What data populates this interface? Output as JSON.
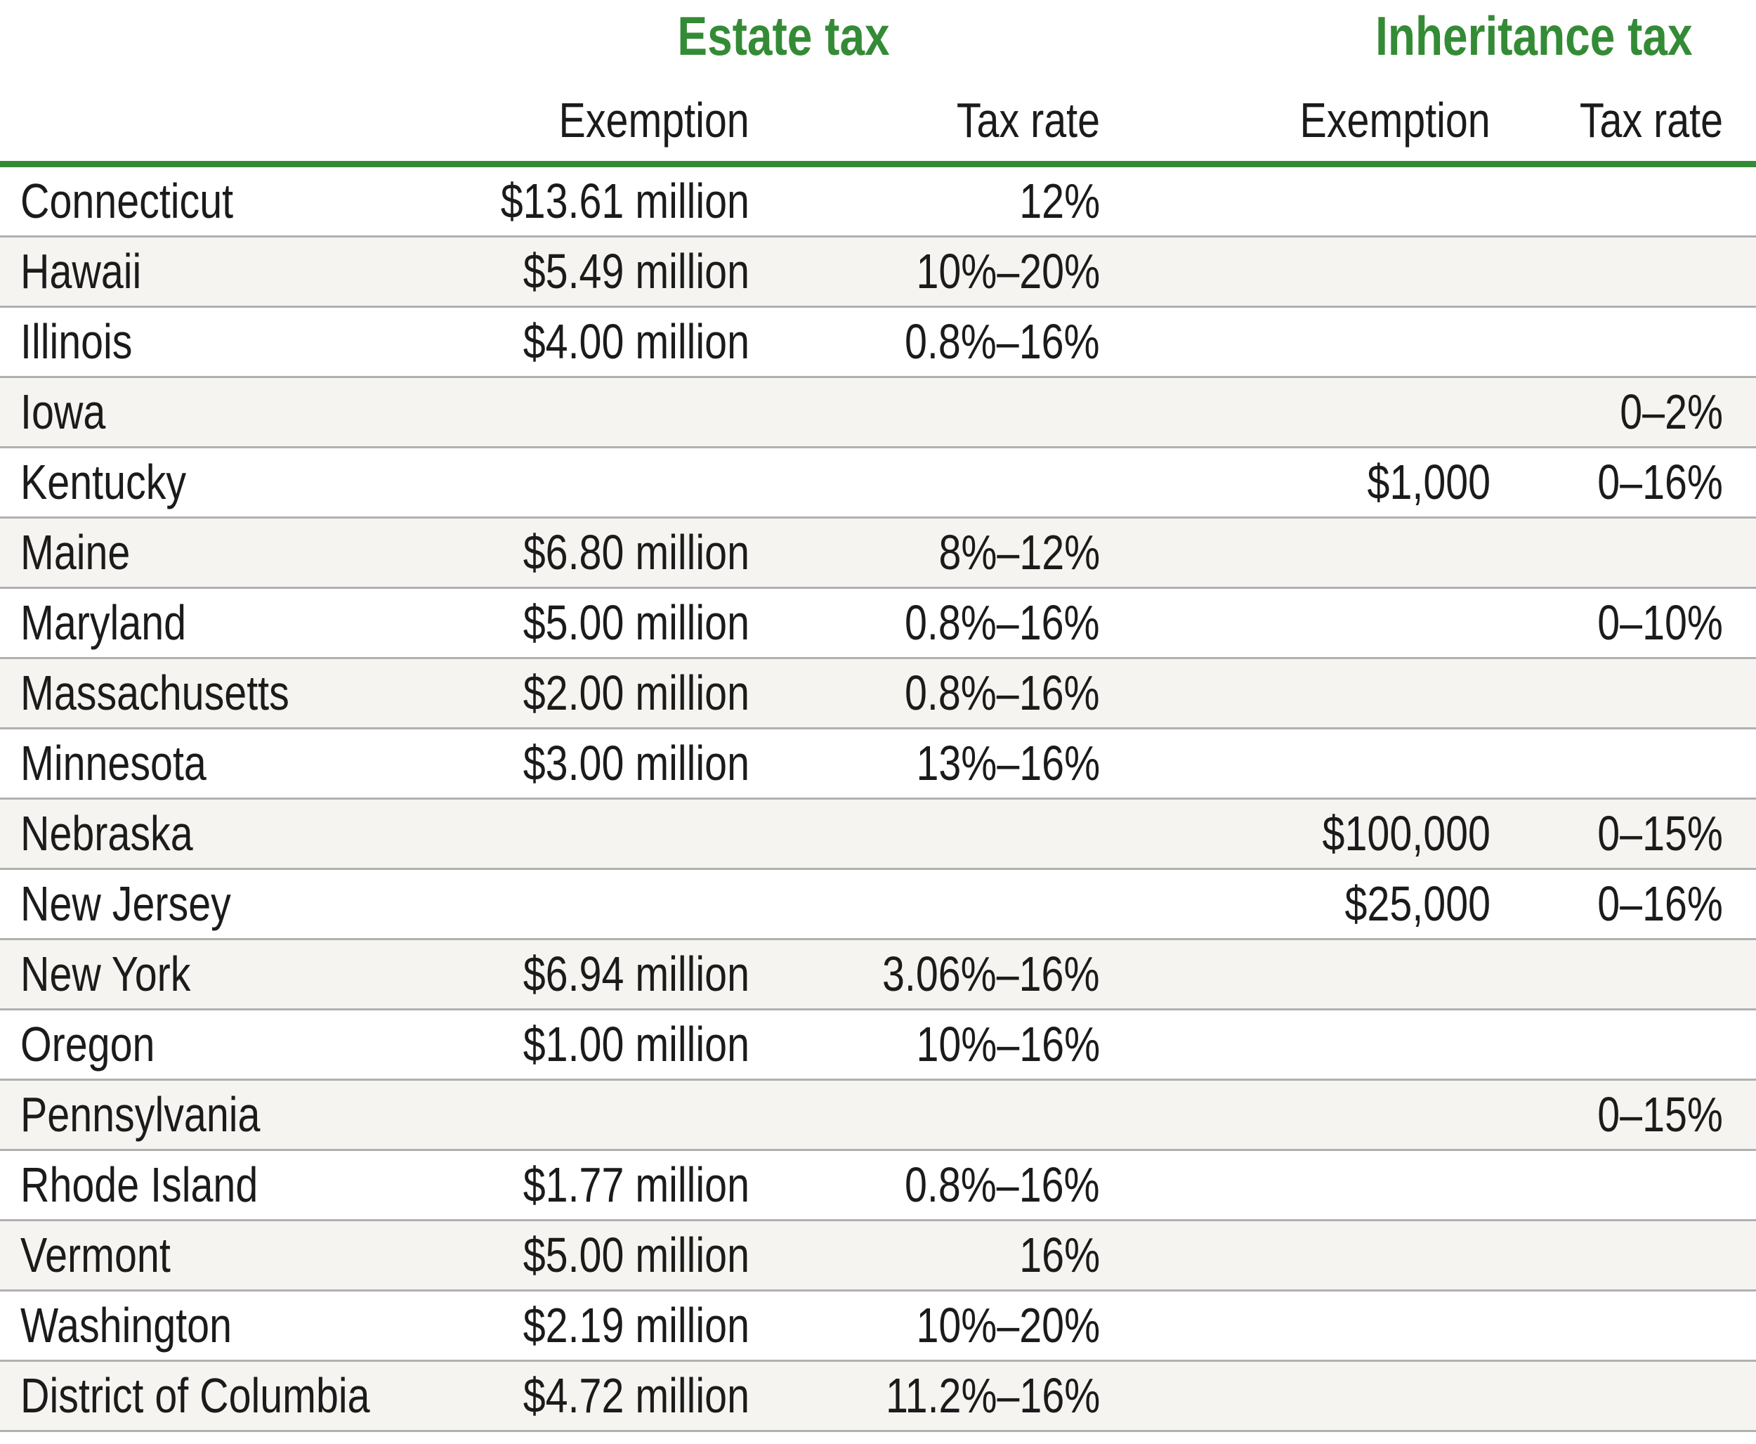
{
  "chart_data": {
    "type": "table",
    "title": "",
    "group_headers": [
      "Estate tax",
      "Inheritance tax"
    ],
    "columns": [
      "Exemption",
      "Tax rate",
      "Exemption",
      "Tax rate"
    ],
    "rows": [
      {
        "state": "Connecticut",
        "estate_exemption": "$13.61 million",
        "estate_tax_rate": "12%",
        "inheritance_exemption": "",
        "inheritance_tax_rate": ""
      },
      {
        "state": "Hawaii",
        "estate_exemption": "$5.49 million",
        "estate_tax_rate": "10%–20%",
        "inheritance_exemption": "",
        "inheritance_tax_rate": ""
      },
      {
        "state": "Illinois",
        "estate_exemption": "$4.00 million",
        "estate_tax_rate": "0.8%–16%",
        "inheritance_exemption": "",
        "inheritance_tax_rate": ""
      },
      {
        "state": "Iowa",
        "estate_exemption": "",
        "estate_tax_rate": "",
        "inheritance_exemption": "",
        "inheritance_tax_rate": "0–2%"
      },
      {
        "state": "Kentucky",
        "estate_exemption": "",
        "estate_tax_rate": "",
        "inheritance_exemption": "$1,000",
        "inheritance_tax_rate": "0–16%"
      },
      {
        "state": "Maine",
        "estate_exemption": "$6.80 million",
        "estate_tax_rate": "8%–12%",
        "inheritance_exemption": "",
        "inheritance_tax_rate": ""
      },
      {
        "state": "Maryland",
        "estate_exemption": "$5.00 million",
        "estate_tax_rate": "0.8%–16%",
        "inheritance_exemption": "",
        "inheritance_tax_rate": "0–10%"
      },
      {
        "state": "Massachusetts",
        "estate_exemption": "$2.00 million",
        "estate_tax_rate": "0.8%–16%",
        "inheritance_exemption": "",
        "inheritance_tax_rate": ""
      },
      {
        "state": "Minnesota",
        "estate_exemption": "$3.00 million",
        "estate_tax_rate": "13%–16%",
        "inheritance_exemption": "",
        "inheritance_tax_rate": ""
      },
      {
        "state": "Nebraska",
        "estate_exemption": "",
        "estate_tax_rate": "",
        "inheritance_exemption": "$100,000",
        "inheritance_tax_rate": "0–15%"
      },
      {
        "state": "New Jersey",
        "estate_exemption": "",
        "estate_tax_rate": "",
        "inheritance_exemption": "$25,000",
        "inheritance_tax_rate": "0–16%"
      },
      {
        "state": "New York",
        "estate_exemption": "$6.94 million",
        "estate_tax_rate": "3.06%–16%",
        "inheritance_exemption": "",
        "inheritance_tax_rate": ""
      },
      {
        "state": "Oregon",
        "estate_exemption": "$1.00 million",
        "estate_tax_rate": "10%–16%",
        "inheritance_exemption": "",
        "inheritance_tax_rate": ""
      },
      {
        "state": "Pennsylvania",
        "estate_exemption": "",
        "estate_tax_rate": "",
        "inheritance_exemption": "",
        "inheritance_tax_rate": "0–15%"
      },
      {
        "state": "Rhode Island",
        "estate_exemption": "$1.77 million",
        "estate_tax_rate": "0.8%–16%",
        "inheritance_exemption": "",
        "inheritance_tax_rate": ""
      },
      {
        "state": "Vermont",
        "estate_exemption": "$5.00 million",
        "estate_tax_rate": "16%",
        "inheritance_exemption": "",
        "inheritance_tax_rate": ""
      },
      {
        "state": "Washington",
        "estate_exemption": "$2.19 million",
        "estate_tax_rate": "10%–20%",
        "inheritance_exemption": "",
        "inheritance_tax_rate": ""
      },
      {
        "state": "District of Columbia",
        "estate_exemption": "$4.72 million",
        "estate_tax_rate": "11.2%–16%",
        "inheritance_exemption": "",
        "inheritance_tax_rate": ""
      }
    ],
    "layout": {
      "grid": "horizontal separators only",
      "alt_row_shading": "even rows shaded"
    }
  },
  "colors": {
    "green": "#348b36",
    "alt_row": "#f5f4f1",
    "separator": "#b0b0b0",
    "text": "#1b1b1b",
    "background": "#ffffff"
  }
}
